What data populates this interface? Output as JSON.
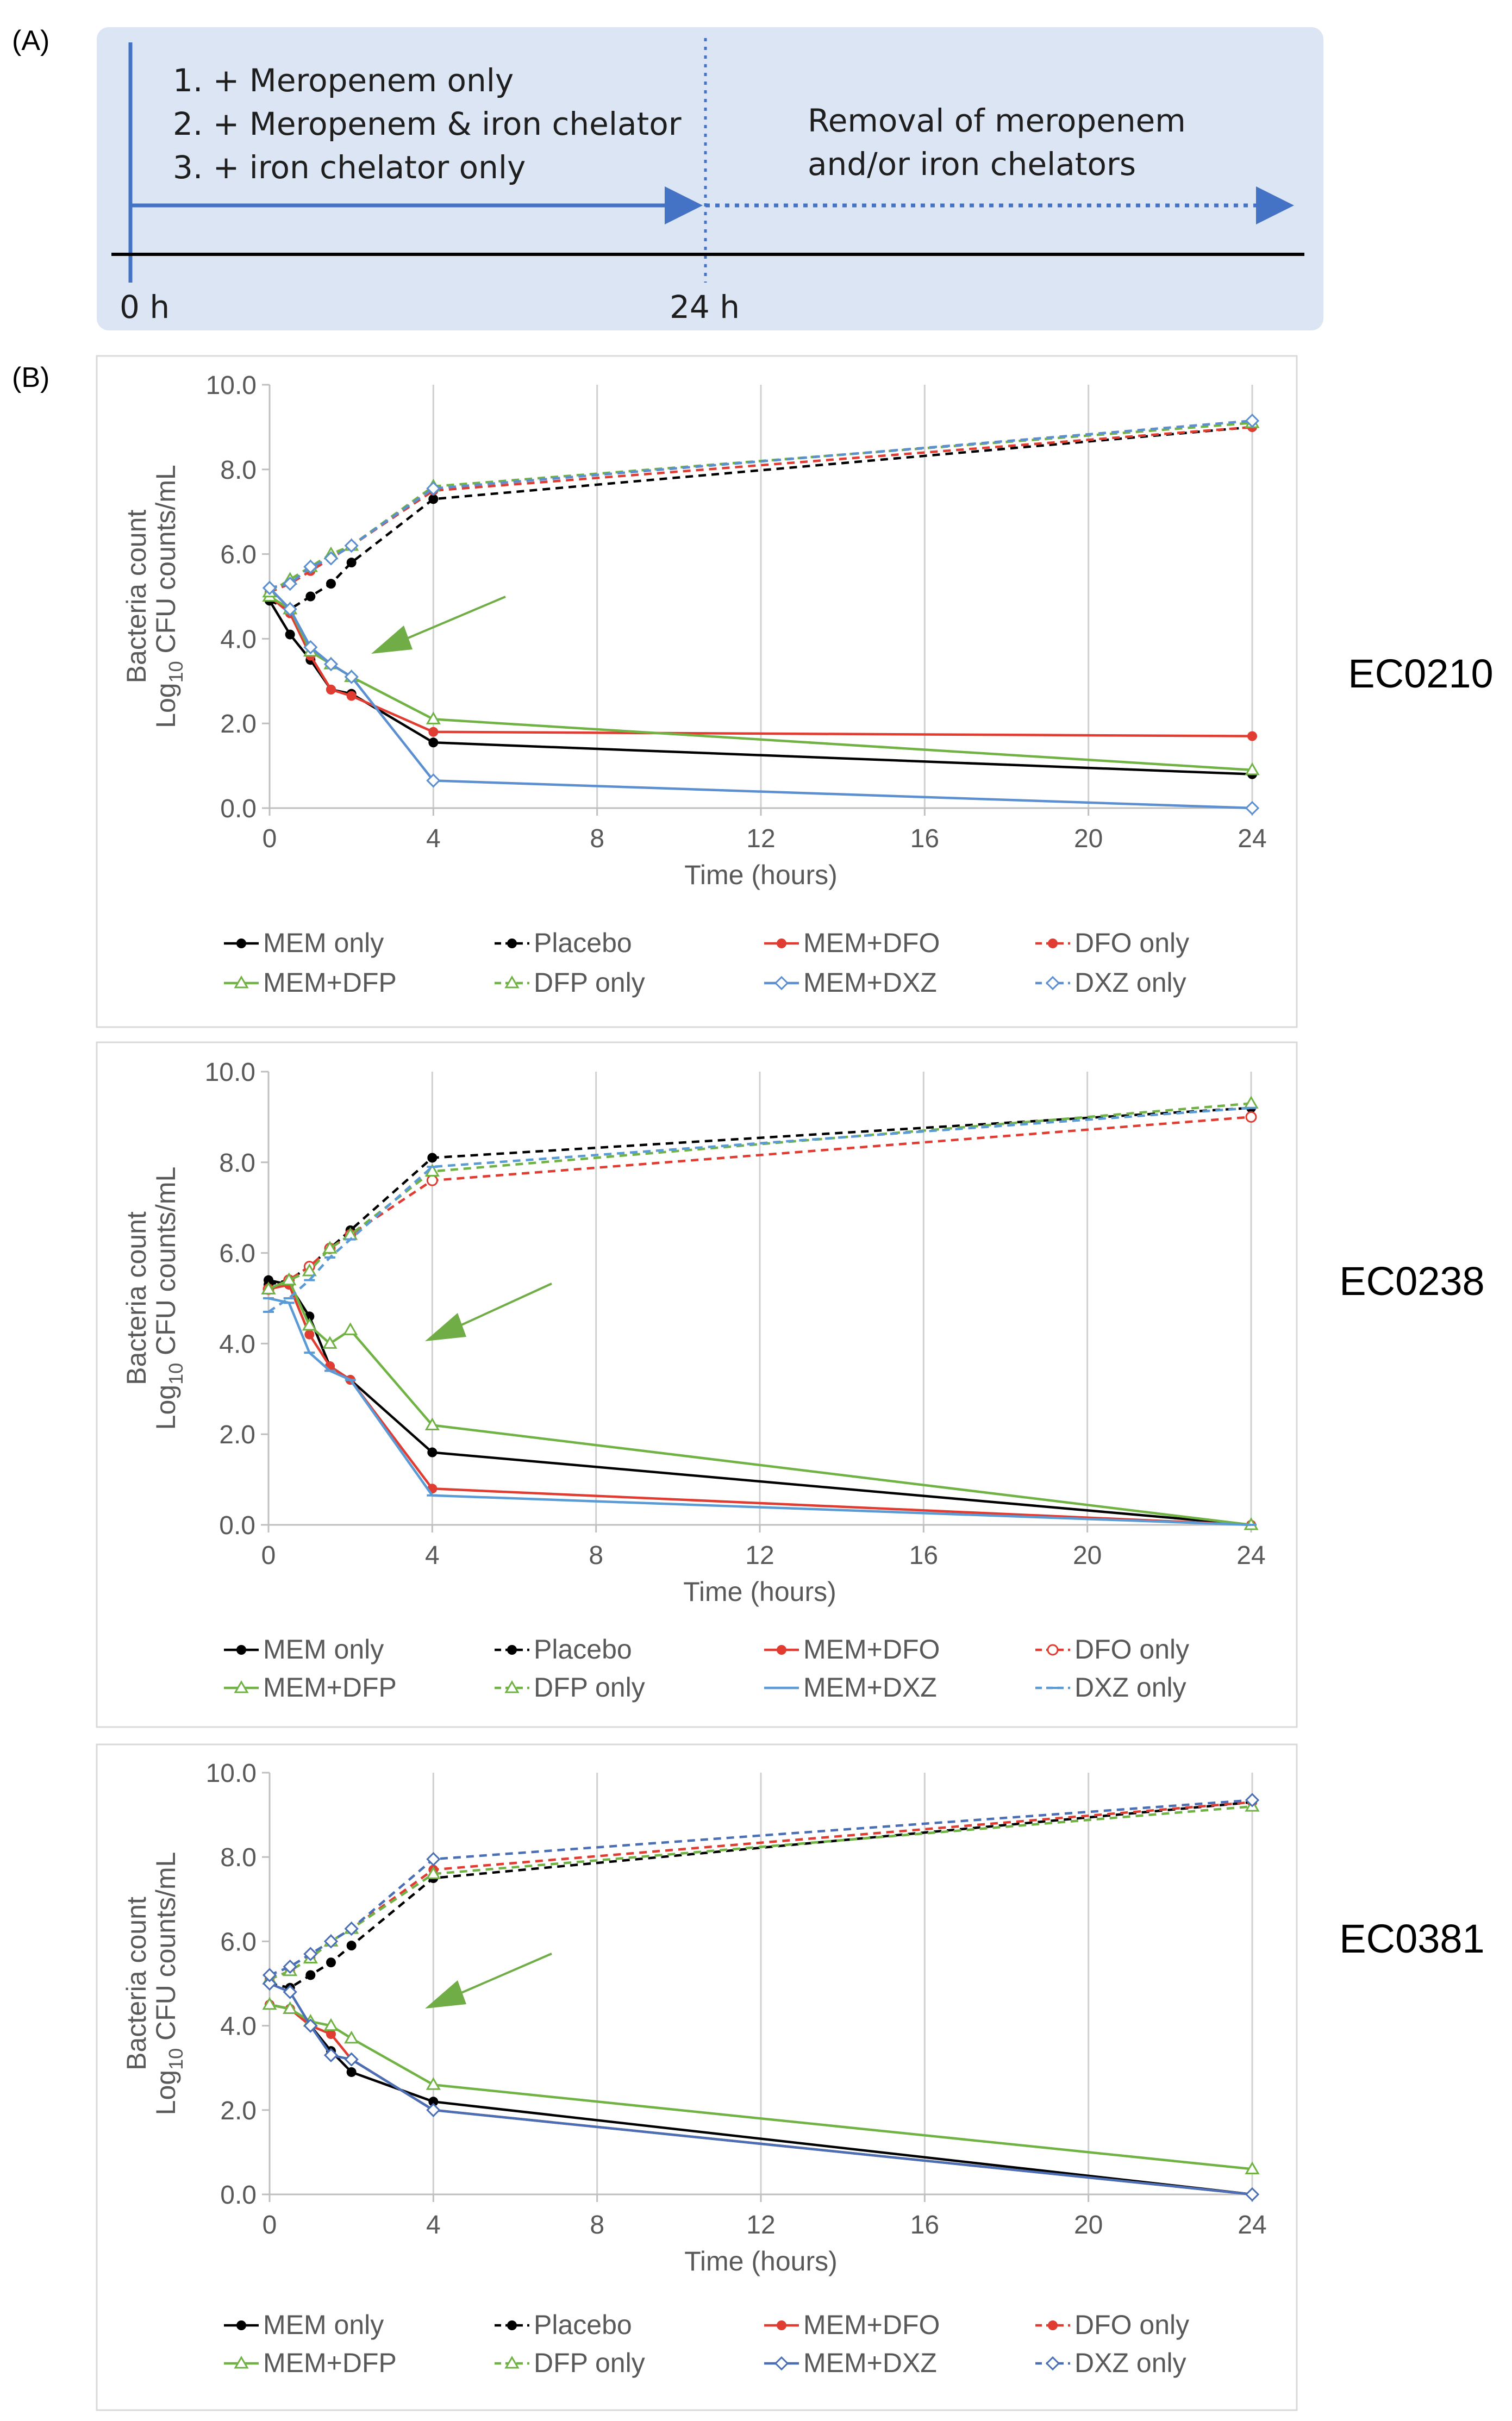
{
  "panel_a": {
    "label": "(A)",
    "steps": [
      "1. + Meropenem only",
      "2. + Meropenem & iron chelator",
      "3. + iron chelator only"
    ],
    "removal_lines": [
      "Removal of meropenem",
      "and/or iron chelators"
    ],
    "time_start": "0 h",
    "time_end": "24 h",
    "colors": {
      "background": "#dbe5f3",
      "arrow": "#4472c4",
      "baseline": "#000000"
    }
  },
  "panel_b": {
    "label": "(B)"
  },
  "chart_data": [
    {
      "type": "line",
      "strain": "EC0210",
      "xlabel": "Time (hours)",
      "ylabel_line1": "Bacteria count",
      "ylabel_line2_prefix": "Log",
      "ylabel_line2_sub": "10",
      "ylabel_line2_suffix": " CFU counts/mL",
      "xlim": [
        0,
        24
      ],
      "ylim": [
        0,
        10
      ],
      "x_ticks": [
        "0",
        "4",
        "8",
        "12",
        "16",
        "20",
        "24"
      ],
      "y_ticks": [
        "0.0",
        "2.0",
        "4.0",
        "6.0",
        "8.0",
        "10.0"
      ],
      "x": [
        0,
        0.5,
        1,
        1.5,
        2,
        4,
        24
      ],
      "series": [
        {
          "name": "MEM only",
          "color": "#000000",
          "dash": "solid",
          "marker": "dot",
          "values": [
            4.9,
            4.1,
            3.5,
            2.8,
            2.7,
            1.55,
            0.8
          ]
        },
        {
          "name": "Placebo",
          "color": "#000000",
          "dash": "dashed",
          "marker": "dot",
          "values": [
            4.9,
            4.7,
            5.0,
            5.3,
            5.8,
            7.3,
            9.0
          ]
        },
        {
          "name": "MEM+DFO",
          "color": "#e03c31",
          "dash": "solid",
          "marker": "dot",
          "values": [
            5.0,
            4.6,
            3.6,
            2.8,
            2.65,
            1.8,
            1.7
          ]
        },
        {
          "name": "DFO only",
          "color": "#e03c31",
          "dash": "dashed",
          "marker": "dot",
          "values": [
            5.1,
            5.3,
            5.6,
            5.9,
            6.2,
            7.5,
            9.0
          ]
        },
        {
          "name": "MEM+DFP",
          "color": "#70b244",
          "dash": "solid",
          "marker": "triangle",
          "values": [
            5.0,
            4.7,
            3.7,
            3.4,
            3.1,
            2.1,
            0.9
          ]
        },
        {
          "name": "DFP only",
          "color": "#70b244",
          "dash": "dashed",
          "marker": "triangle",
          "values": [
            5.1,
            5.4,
            5.7,
            6.0,
            6.2,
            7.6,
            9.1
          ]
        },
        {
          "name": "MEM+DXZ",
          "color": "#5b8fd0",
          "dash": "solid",
          "marker": "diamond",
          "values": [
            5.2,
            4.7,
            3.8,
            3.4,
            3.1,
            0.65,
            0.0
          ]
        },
        {
          "name": "DXZ only",
          "color": "#5b8fd0",
          "dash": "dashed",
          "marker": "diamond",
          "values": [
            5.2,
            5.3,
            5.7,
            5.9,
            6.2,
            7.55,
            9.15
          ]
        }
      ]
    },
    {
      "type": "line",
      "strain": "EC0238",
      "xlabel": "Time (hours)",
      "ylabel_line1": "Bacteria count",
      "ylabel_line2_prefix": "Log",
      "ylabel_line2_sub": "10",
      "ylabel_line2_suffix": " CFU counts/mL",
      "xlim": [
        0,
        24
      ],
      "ylim": [
        0,
        10
      ],
      "x_ticks": [
        "0",
        "4",
        "8",
        "12",
        "16",
        "20",
        "24"
      ],
      "y_ticks": [
        "0.0",
        "2.0",
        "4.0",
        "6.0",
        "8.0",
        "10.0"
      ],
      "x": [
        0,
        0.5,
        1,
        1.5,
        2,
        4,
        24
      ],
      "series": [
        {
          "name": "MEM only",
          "color": "#000000",
          "dash": "solid",
          "marker": "dot",
          "values": [
            5.4,
            5.3,
            4.6,
            3.5,
            3.2,
            1.6,
            0.0
          ]
        },
        {
          "name": "Placebo",
          "color": "#000000",
          "dash": "dashed",
          "marker": "dot",
          "values": [
            5.3,
            5.4,
            5.7,
            6.1,
            6.5,
            8.1,
            9.2
          ]
        },
        {
          "name": "MEM+DFO",
          "color": "#e03c31",
          "dash": "solid",
          "marker": "dot",
          "values": [
            5.2,
            5.3,
            4.2,
            3.5,
            3.2,
            0.8,
            0.0
          ]
        },
        {
          "name": "DFO only",
          "color": "#e03c31",
          "dash": "dashed",
          "marker": "circle",
          "values": [
            5.2,
            5.4,
            5.7,
            6.1,
            6.4,
            7.6,
            9.0
          ]
        },
        {
          "name": "MEM+DFP",
          "color": "#70b244",
          "dash": "solid",
          "marker": "triangle",
          "values": [
            5.2,
            5.4,
            4.4,
            4.0,
            4.3,
            2.2,
            0.0
          ]
        },
        {
          "name": "DFP only",
          "color": "#70b244",
          "dash": "dashed",
          "marker": "triangle",
          "values": [
            5.2,
            5.4,
            5.6,
            6.1,
            6.4,
            7.8,
            9.3
          ]
        },
        {
          "name": "MEM+DXZ",
          "color": "#5b9bd5",
          "dash": "solid",
          "marker": "dash",
          "values": [
            5.0,
            4.9,
            3.8,
            3.4,
            3.2,
            0.65,
            0.0
          ]
        },
        {
          "name": "DXZ only",
          "color": "#5b9bd5",
          "dash": "dashed",
          "marker": "dash",
          "values": [
            4.7,
            5.0,
            5.4,
            5.9,
            6.3,
            7.9,
            9.2
          ]
        }
      ]
    },
    {
      "type": "line",
      "strain": "EC0381",
      "xlabel": "Time (hours)",
      "ylabel_line1": "Bacteria count",
      "ylabel_line2_prefix": "Log",
      "ylabel_line2_sub": "10",
      "ylabel_line2_suffix": " CFU counts/mL",
      "xlim": [
        0,
        24
      ],
      "ylim": [
        0,
        10
      ],
      "x_ticks": [
        "0",
        "4",
        "8",
        "12",
        "16",
        "20",
        "24"
      ],
      "y_ticks": [
        "0.0",
        "2.0",
        "4.0",
        "6.0",
        "8.0",
        "10.0"
      ],
      "x": [
        0,
        0.5,
        1,
        1.5,
        2,
        4,
        24
      ],
      "series": [
        {
          "name": "MEM only",
          "color": "#000000",
          "dash": "solid",
          "marker": "dot",
          "values": [
            4.5,
            4.4,
            4.0,
            3.4,
            2.9,
            2.2,
            0.0
          ]
        },
        {
          "name": "Placebo",
          "color": "#000000",
          "dash": "dashed",
          "marker": "dot",
          "values": [
            5.0,
            4.9,
            5.2,
            5.5,
            5.9,
            7.5,
            9.3
          ]
        },
        {
          "name": "MEM+DFO",
          "color": "#e03c31",
          "dash": "solid",
          "marker": "dot",
          "values": [
            4.5,
            4.4,
            4.0,
            3.8,
            3.2,
            2.0,
            0.0
          ]
        },
        {
          "name": "DFO only",
          "color": "#e03c31",
          "dash": "dashed",
          "marker": "dot",
          "values": [
            5.1,
            5.3,
            5.6,
            6.0,
            6.3,
            7.7,
            9.3
          ]
        },
        {
          "name": "MEM+DFP",
          "color": "#70b244",
          "dash": "solid",
          "marker": "triangle",
          "values": [
            4.5,
            4.4,
            4.1,
            4.0,
            3.7,
            2.6,
            0.6
          ]
        },
        {
          "name": "DFP only",
          "color": "#70b244",
          "dash": "dashed",
          "marker": "triangle",
          "values": [
            5.1,
            5.3,
            5.6,
            6.0,
            6.3,
            7.6,
            9.2
          ]
        },
        {
          "name": "MEM+DXZ",
          "color": "#4a6fb5",
          "dash": "solid",
          "marker": "diamond",
          "values": [
            5.0,
            4.8,
            4.0,
            3.3,
            3.2,
            2.0,
            0.0
          ]
        },
        {
          "name": "DXZ only",
          "color": "#4a6fb5",
          "dash": "dashed",
          "marker": "diamond",
          "values": [
            5.2,
            5.4,
            5.7,
            6.0,
            6.3,
            7.95,
            9.35
          ]
        }
      ]
    }
  ],
  "annotation_color": "#70ad47"
}
